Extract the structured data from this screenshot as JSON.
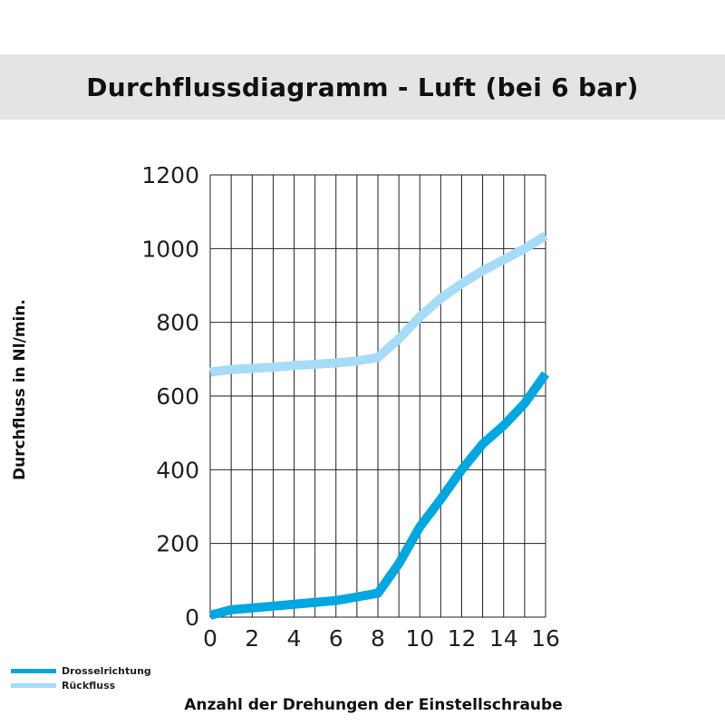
{
  "colors": {
    "drossel": "#00a7e1",
    "rueck": "#a6dcf7",
    "title_bg": "#e4e4e4",
    "grid": "#222222"
  },
  "chart_data": {
    "type": "line",
    "title": "Durchflussdiagramm - Luft (bei 6 bar)",
    "xlabel": "Anzahl der Drehungen der Einstellschraube",
    "ylabel": "Durchfluss in Nl/min.",
    "xlim": [
      0,
      16
    ],
    "ylim": [
      0,
      1200
    ],
    "x_ticks": [
      0,
      2,
      4,
      6,
      8,
      10,
      12,
      14,
      16
    ],
    "y_ticks": [
      0,
      200,
      400,
      600,
      800,
      1000,
      1200
    ],
    "grid": true,
    "legend_position": "bottom-left",
    "series": [
      {
        "name": "Drosselrichtung",
        "color": "#00a7e1",
        "x": [
          0,
          1,
          2,
          3,
          4,
          5,
          6,
          7,
          8,
          9,
          10,
          11,
          12,
          13,
          14,
          15,
          16
        ],
        "y": [
          5,
          20,
          25,
          30,
          35,
          40,
          45,
          55,
          65,
          145,
          245,
          320,
          400,
          470,
          520,
          580,
          660
        ]
      },
      {
        "name": "Rückfluss",
        "color": "#a6dcf7",
        "x": [
          0,
          1,
          2,
          3,
          4,
          5,
          6,
          7,
          8,
          9,
          10,
          11,
          12,
          13,
          14,
          15,
          16
        ],
        "y": [
          665,
          672,
          675,
          678,
          683,
          686,
          690,
          695,
          705,
          755,
          815,
          865,
          905,
          940,
          970,
          1000,
          1035
        ]
      }
    ]
  }
}
